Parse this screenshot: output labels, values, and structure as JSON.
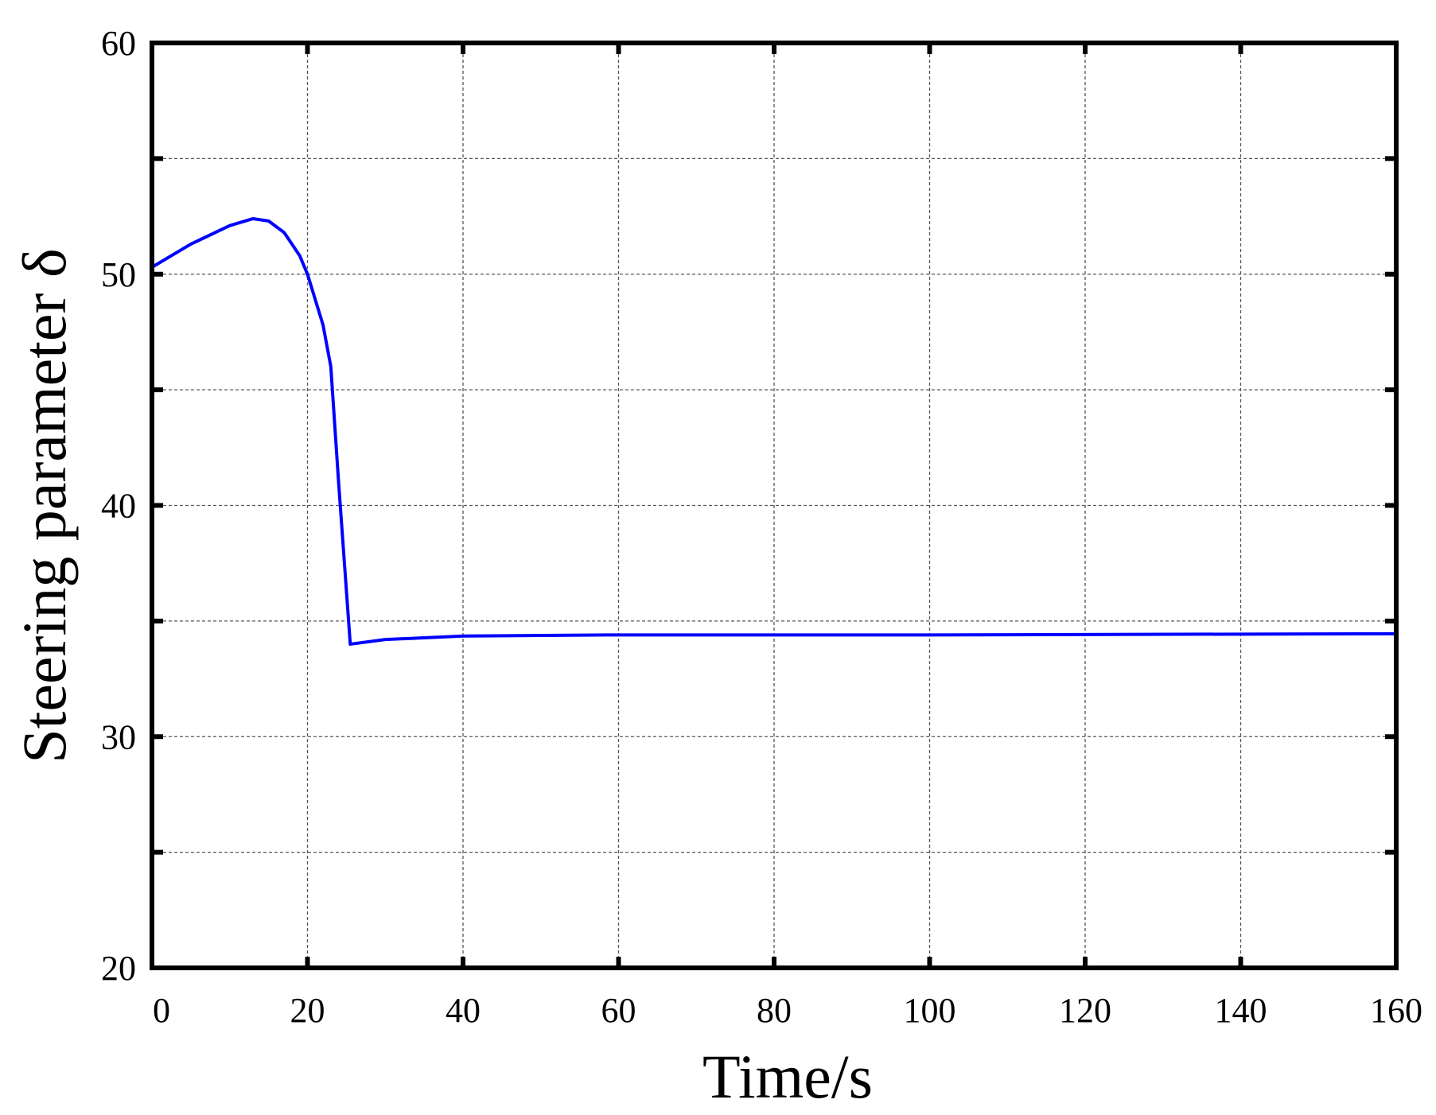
{
  "chart_data": {
    "type": "line",
    "xlabel": "Time/s",
    "ylabel": "Steering parameter δ",
    "x": [
      0,
      5,
      10,
      13,
      15,
      17,
      19,
      20,
      22,
      23,
      24,
      25.5,
      30,
      40,
      60,
      100,
      160
    ],
    "series": [
      {
        "color": "#0000ff",
        "values": [
          50.3,
          51.3,
          52.1,
          52.4,
          52.3,
          51.8,
          50.8,
          50.0,
          47.8,
          46.0,
          41.0,
          34.0,
          34.2,
          34.35,
          34.4,
          34.4,
          34.45
        ]
      }
    ],
    "xlim": [
      0,
      160
    ],
    "xticks": [
      0,
      20,
      40,
      60,
      80,
      100,
      120,
      140,
      160
    ],
    "ylim": [
      20,
      60
    ],
    "yticks": [
      20,
      30,
      40,
      50,
      60
    ],
    "yminorticks": [
      25,
      35,
      45,
      55
    ],
    "grid": true
  }
}
